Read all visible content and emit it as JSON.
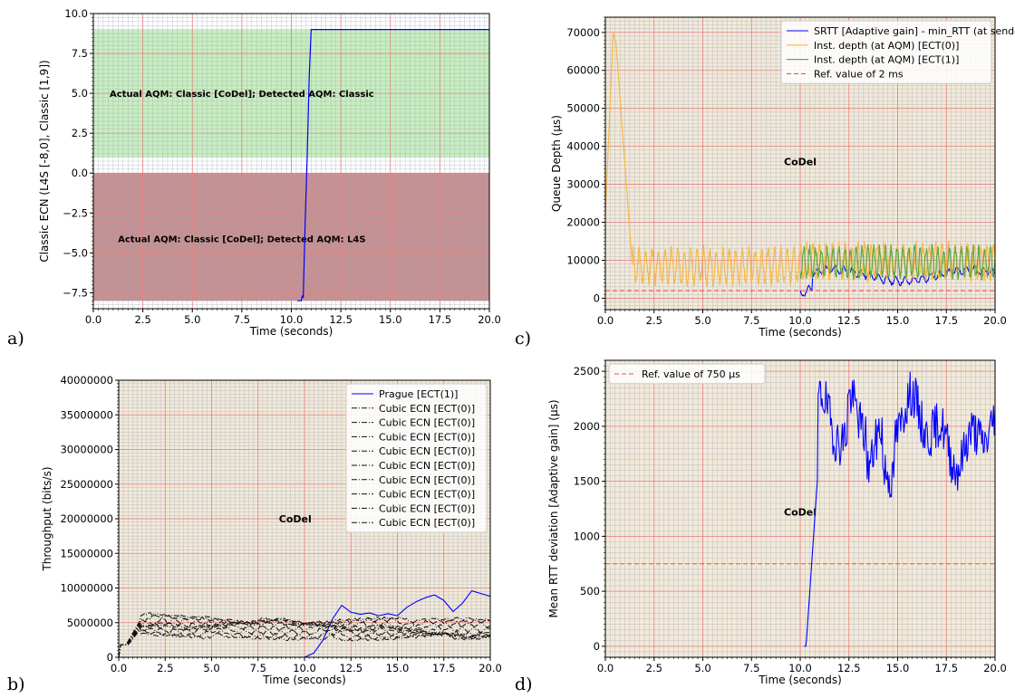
{
  "panel_letters": [
    "a)",
    "b)",
    "c)",
    "d)"
  ],
  "chart_data": [
    {
      "id": "a",
      "type": "line",
      "xlabel": "Time (seconds)",
      "ylabel": "Classic ECN (L4S [-8,0], Classic [1,9])",
      "xlim": [
        0,
        20
      ],
      "ylim": [
        -8.5,
        10
      ],
      "xticks": [
        0,
        2.5,
        5,
        7.5,
        10,
        12.5,
        15,
        17.5,
        20
      ],
      "yticks": [
        -7.5,
        -5,
        -2.5,
        0,
        2.5,
        5,
        7.5,
        10
      ],
      "xtick_decimals": 1,
      "ytick_decimals": 1,
      "grid": true,
      "bands": [
        {
          "y0": 1,
          "y1": 9,
          "color": "#c8eec0"
        },
        {
          "y0": -8,
          "y1": 0,
          "color": "#c99090"
        }
      ],
      "annotations": [
        {
          "text": "Actual AQM: Classic [CoDel]; Detected AQM: Classic",
          "x": 7.5,
          "y": 5.0
        },
        {
          "text": "Actual AQM: Classic [CoDel]; Detected AQM: L4S",
          "x": 7.5,
          "y": -4.1
        }
      ],
      "series": [
        {
          "color": "#0000ff",
          "x": [
            10.3,
            10.5,
            10.55,
            10.6,
            10.7,
            10.8,
            10.9,
            11.0,
            20.0
          ],
          "y": [
            -8,
            -8,
            -7.7,
            -7.8,
            -3,
            1,
            6,
            9,
            9
          ]
        }
      ]
    },
    {
      "id": "c",
      "type": "line",
      "xlabel": "Time (seconds)",
      "ylabel": "Queue Depth (µs)",
      "xlim": [
        0,
        20
      ],
      "ylim": [
        -3000,
        74000
      ],
      "xticks": [
        0,
        2.5,
        5,
        7.5,
        10,
        12.5,
        15,
        17.5,
        20
      ],
      "yticks": [
        0,
        10000,
        20000,
        30000,
        40000,
        50000,
        60000,
        70000
      ],
      "xtick_decimals": 1,
      "ytick_decimals": 0,
      "grid": true,
      "legend": "top-right",
      "annotations": [
        {
          "text": "CoDel",
          "x": 10,
          "y": 36000
        }
      ],
      "series": [
        {
          "name": "SRTT [Adaptive gain] - min_RTT (at sender)",
          "color": "#0000ff",
          "width": 1.1,
          "generator": "srtt"
        },
        {
          "name": "Inst. depth (at AQM) [ECT(0)]",
          "color": "#f5b84a",
          "width": 1.2,
          "generator": "ect0"
        },
        {
          "name": "Inst. depth (at AQM) [ECT(1)]",
          "color": "#5fa845",
          "width": 1.2,
          "generator": "ect1"
        },
        {
          "name": "Ref. value of 2 ms",
          "color": "#e45050",
          "width": 1.1,
          "dash": "5,3",
          "const": 2000
        }
      ]
    },
    {
      "id": "b",
      "type": "line",
      "xlabel": "Time (seconds)",
      "ylabel": "Throughput (bits/s)",
      "xlim": [
        0,
        20
      ],
      "ylim": [
        0,
        40000000
      ],
      "xticks": [
        0,
        2.5,
        5,
        7.5,
        10,
        12.5,
        15,
        17.5,
        20
      ],
      "yticks": [
        0,
        5000000,
        10000000,
        15000000,
        20000000,
        25000000,
        30000000,
        35000000,
        40000000
      ],
      "xtick_decimals": 1,
      "ytick_decimals": 0,
      "grid": true,
      "legend": "top-right",
      "annotations": [
        {
          "text": "CoDel",
          "x": 9.5,
          "y": 20000000
        }
      ],
      "series": [
        {
          "name": "Prague [ECT(1)]",
          "color": "#0000ff",
          "width": 1.1,
          "generator": "prague"
        },
        {
          "name": "Cubic ECN [ECT(0)]",
          "color": "#111111",
          "width": 1.0,
          "dash": "6,2,1,2",
          "generator": "cubic",
          "seed": 1
        },
        {
          "name": "Cubic ECN [ECT(0)]",
          "color": "#111111",
          "width": 1.0,
          "dash": "6,2,1,2",
          "generator": "cubic",
          "seed": 2
        },
        {
          "name": "Cubic ECN [ECT(0)]",
          "color": "#111111",
          "width": 1.0,
          "dash": "6,2,1,2",
          "generator": "cubic",
          "seed": 3
        },
        {
          "name": "Cubic ECN [ECT(0)]",
          "color": "#111111",
          "width": 1.0,
          "dash": "6,2,1,2",
          "generator": "cubic",
          "seed": 4
        },
        {
          "name": "Cubic ECN [ECT(0)]",
          "color": "#111111",
          "width": 1.0,
          "dash": "6,2,1,2",
          "generator": "cubic",
          "seed": 5
        },
        {
          "name": "Cubic ECN [ECT(0)]",
          "color": "#111111",
          "width": 1.0,
          "dash": "6,2,1,2",
          "generator": "cubic",
          "seed": 6
        },
        {
          "name": "Cubic ECN [ECT(0)]",
          "color": "#111111",
          "width": 1.0,
          "dash": "6,2,1,2",
          "generator": "cubic",
          "seed": 7
        },
        {
          "name": "Cubic ECN [ECT(0)]",
          "color": "#111111",
          "width": 1.0,
          "dash": "6,2,1,2",
          "generator": "cubic",
          "seed": 8
        },
        {
          "name": "Cubic ECN [ECT(0)]",
          "color": "#111111",
          "width": 1.0,
          "dash": "6,2,1,2",
          "generator": "cubic",
          "seed": 9
        }
      ]
    },
    {
      "id": "d",
      "type": "line",
      "xlabel": "Time (seconds)",
      "ylabel": "Mean RTT deviation [Adaptive gain] (µs)",
      "xlim": [
        0,
        20
      ],
      "ylim": [
        -100,
        2600
      ],
      "xticks": [
        0,
        2.5,
        5,
        7.5,
        10,
        12.5,
        15,
        17.5,
        20
      ],
      "yticks": [
        0,
        500,
        1000,
        1500,
        2000,
        2500
      ],
      "xtick_decimals": 1,
      "ytick_decimals": 0,
      "grid": true,
      "legend": "top-left",
      "annotations": [
        {
          "text": "CoDel",
          "x": 10,
          "y": 1220
        }
      ],
      "series": [
        {
          "name": "Ref. value of 750 µs",
          "color": "#e45050",
          "width": 1.1,
          "dash": "5,3",
          "const": 750
        },
        {
          "color": "#0000ff",
          "width": 1.1,
          "generator": "mdev"
        }
      ]
    }
  ],
  "style": {
    "plot_bg": "#f2e9d8",
    "major_grid": "#e87f7f",
    "minor_grid": "#9aa0b8"
  }
}
